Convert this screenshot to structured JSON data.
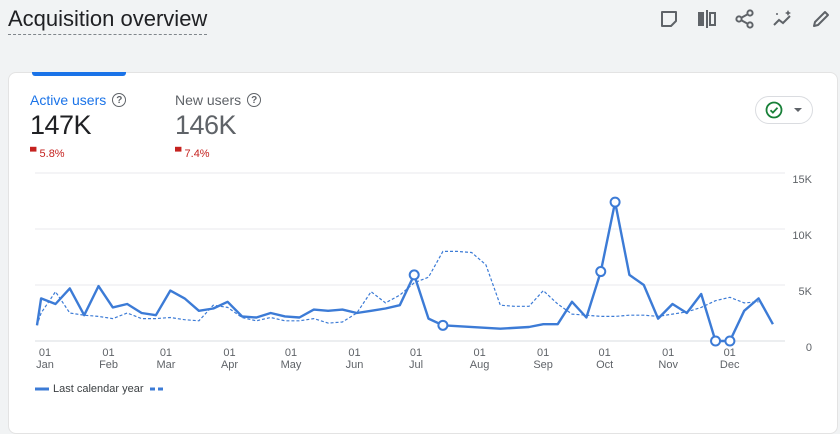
{
  "header": {
    "title": "Acquisition overview"
  },
  "toolbar": {
    "icons": [
      "note-icon",
      "compare-icon",
      "share-icon",
      "insights-icon",
      "edit-icon"
    ]
  },
  "metrics": [
    {
      "label": "Active users",
      "value": "147K",
      "change": "5.8%",
      "direction": "down",
      "selected": true
    },
    {
      "label": "New users",
      "value": "146K",
      "change": "7.4%",
      "direction": "down",
      "selected": false
    }
  ],
  "comparison_control": {
    "icon": "check-circle-icon",
    "dropdown": "caret-down-icon"
  },
  "colors": {
    "accent": "#1a73e8",
    "series": "#3c7bd6",
    "negative": "#c5221f",
    "check": "#188038"
  },
  "chart_data": {
    "type": "line",
    "y_ticks": [
      "15K",
      "10K",
      "5K",
      "0"
    ],
    "ylim": [
      0,
      15000
    ],
    "x_ticks": [
      {
        "day": "01",
        "month": "Jan"
      },
      {
        "day": "01",
        "month": "Feb"
      },
      {
        "day": "01",
        "month": "Mar"
      },
      {
        "day": "01",
        "month": "Apr"
      },
      {
        "day": "01",
        "month": "May"
      },
      {
        "day": "01",
        "month": "Jun"
      },
      {
        "day": "01",
        "month": "Jul"
      },
      {
        "day": "01",
        "month": "Aug"
      },
      {
        "day": "01",
        "month": "Sep"
      },
      {
        "day": "01",
        "month": "Oct"
      },
      {
        "day": "01",
        "month": "Nov"
      },
      {
        "day": "01",
        "month": "Dec"
      }
    ],
    "grid": true,
    "legend_position": "bottom-left",
    "series": [
      {
        "style": "solid",
        "points": [
          [
            "01-01",
            1400
          ],
          [
            "01-03",
            3800
          ],
          [
            "01-10",
            3300
          ],
          [
            "01-17",
            4700
          ],
          [
            "01-24",
            2300
          ],
          [
            "01-31",
            4900
          ],
          [
            "02-07",
            3000
          ],
          [
            "02-14",
            3300
          ],
          [
            "02-21",
            2500
          ],
          [
            "02-28",
            2300
          ],
          [
            "03-07",
            4500
          ],
          [
            "03-14",
            3800
          ],
          [
            "03-21",
            2700
          ],
          [
            "03-28",
            2900
          ],
          [
            "04-04",
            3500
          ],
          [
            "04-11",
            2200
          ],
          [
            "04-18",
            2100
          ],
          [
            "04-25",
            2500
          ],
          [
            "05-02",
            2200
          ],
          [
            "05-09",
            2100
          ],
          [
            "05-16",
            2800
          ],
          [
            "05-23",
            2700
          ],
          [
            "05-30",
            2800
          ],
          [
            "06-06",
            2500
          ],
          [
            "06-13",
            2700
          ],
          [
            "06-20",
            2900
          ],
          [
            "06-27",
            3200
          ],
          [
            "07-04",
            5900
          ],
          [
            "07-11",
            2000
          ],
          [
            "07-18",
            1400
          ],
          [
            "08-15",
            1100
          ],
          [
            "08-29",
            1250
          ],
          [
            "09-05",
            1500
          ],
          [
            "09-12",
            1500
          ],
          [
            "09-19",
            3500
          ],
          [
            "09-26",
            2100
          ],
          [
            "10-03",
            6200
          ],
          [
            "10-10",
            12400
          ],
          [
            "10-17",
            5900
          ],
          [
            "10-24",
            5000
          ],
          [
            "10-31",
            2000
          ],
          [
            "11-07",
            3300
          ],
          [
            "11-14",
            2500
          ],
          [
            "11-21",
            4200
          ],
          [
            "11-28",
            0
          ],
          [
            "12-05",
            0
          ],
          [
            "12-12",
            2700
          ],
          [
            "12-19",
            3800
          ],
          [
            "12-26",
            1500
          ]
        ],
        "marked": [
          "07-04",
          "07-18",
          "10-03",
          "10-10",
          "11-28",
          "12-05"
        ]
      },
      {
        "name": "Last calendar year",
        "style": "dashed",
        "points": [
          [
            "01-01",
            1400
          ],
          [
            "01-03",
            2500
          ],
          [
            "01-10",
            4400
          ],
          [
            "01-17",
            2500
          ],
          [
            "01-24",
            2300
          ],
          [
            "01-31",
            2200
          ],
          [
            "02-07",
            2000
          ],
          [
            "02-14",
            2500
          ],
          [
            "02-21",
            2000
          ],
          [
            "02-28",
            2000
          ],
          [
            "03-07",
            2100
          ],
          [
            "03-14",
            1900
          ],
          [
            "03-21",
            1800
          ],
          [
            "03-28",
            3200
          ],
          [
            "04-04",
            3000
          ],
          [
            "04-11",
            2100
          ],
          [
            "04-18",
            1800
          ],
          [
            "04-25",
            2100
          ],
          [
            "05-02",
            1800
          ],
          [
            "05-09",
            1800
          ],
          [
            "05-16",
            2000
          ],
          [
            "05-23",
            1600
          ],
          [
            "05-30",
            1700
          ],
          [
            "06-06",
            2500
          ],
          [
            "06-13",
            4400
          ],
          [
            "06-20",
            3400
          ],
          [
            "06-27",
            4100
          ],
          [
            "07-04",
            5200
          ],
          [
            "07-11",
            5700
          ],
          [
            "07-18",
            8000
          ],
          [
            "07-25",
            8000
          ],
          [
            "08-01",
            7900
          ],
          [
            "08-08",
            6800
          ],
          [
            "08-15",
            3200
          ],
          [
            "08-22",
            3100
          ],
          [
            "08-29",
            3100
          ],
          [
            "09-05",
            4500
          ],
          [
            "09-12",
            3300
          ],
          [
            "09-19",
            2400
          ],
          [
            "09-26",
            2300
          ],
          [
            "10-03",
            2200
          ],
          [
            "10-10",
            2200
          ],
          [
            "10-17",
            2300
          ],
          [
            "10-24",
            2300
          ],
          [
            "10-31",
            2200
          ],
          [
            "11-07",
            2400
          ],
          [
            "11-14",
            2600
          ],
          [
            "11-21",
            3000
          ],
          [
            "11-28",
            3600
          ],
          [
            "12-05",
            3900
          ],
          [
            "12-12",
            3400
          ],
          [
            "12-19",
            3500
          ]
        ]
      }
    ]
  }
}
